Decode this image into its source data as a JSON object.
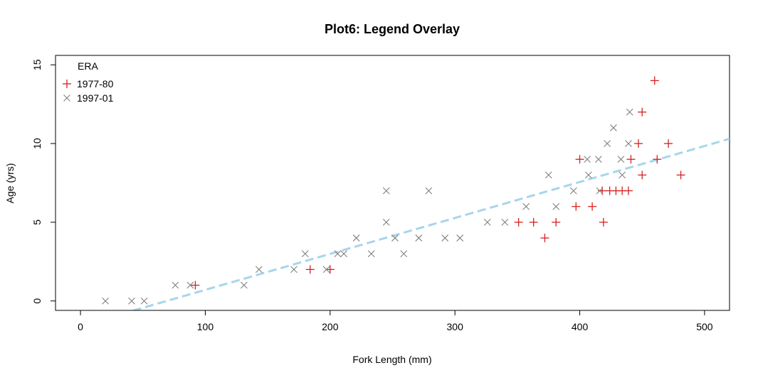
{
  "chart_data": {
    "type": "scatter",
    "title": "Plot6: Legend Overlay",
    "xlabel": "Fork Length (mm)",
    "ylabel": "Age (yrs)",
    "xlim": [
      -20,
      520
    ],
    "ylim": [
      -0.6,
      15.6
    ],
    "x_ticks": [
      0,
      100,
      200,
      300,
      400,
      500
    ],
    "y_ticks": [
      0,
      5,
      10,
      15
    ],
    "legend": {
      "title": "ERA",
      "position": "top-left",
      "entries": [
        {
          "label": "1977-80",
          "marker": "plus",
          "color": "#d62020"
        },
        {
          "label": "1997-01",
          "marker": "cross",
          "color": "#808080"
        }
      ]
    },
    "series": [
      {
        "name": "1977-80",
        "marker": "plus",
        "color": "#d62020",
        "points": [
          [
            92,
            1
          ],
          [
            184,
            2
          ],
          [
            200,
            2
          ],
          [
            351,
            5
          ],
          [
            363,
            5
          ],
          [
            372,
            4
          ],
          [
            381,
            5
          ],
          [
            397,
            6
          ],
          [
            400,
            9
          ],
          [
            410,
            6
          ],
          [
            418,
            7
          ],
          [
            419,
            5
          ],
          [
            424,
            7
          ],
          [
            429,
            7
          ],
          [
            434,
            7
          ],
          [
            439,
            7
          ],
          [
            441,
            9
          ],
          [
            447,
            10
          ],
          [
            450,
            12
          ],
          [
            450,
            8
          ],
          [
            460,
            14
          ],
          [
            462,
            9
          ],
          [
            471,
            10
          ],
          [
            481,
            8
          ]
        ]
      },
      {
        "name": "1997-01",
        "marker": "cross",
        "color": "#808080",
        "points": [
          [
            20,
            0
          ],
          [
            41,
            0
          ],
          [
            51,
            0
          ],
          [
            76,
            1
          ],
          [
            88,
            1
          ],
          [
            131,
            1
          ],
          [
            143,
            2
          ],
          [
            171,
            2
          ],
          [
            180,
            3
          ],
          [
            197,
            2
          ],
          [
            206,
            3
          ],
          [
            211,
            3
          ],
          [
            221,
            4
          ],
          [
            233,
            3
          ],
          [
            245,
            5
          ],
          [
            245,
            7
          ],
          [
            252,
            4
          ],
          [
            259,
            3
          ],
          [
            271,
            4
          ],
          [
            279,
            7
          ],
          [
            292,
            4
          ],
          [
            304,
            4
          ],
          [
            326,
            5
          ],
          [
            340,
            5
          ],
          [
            357,
            6
          ],
          [
            375,
            8
          ],
          [
            381,
            6
          ],
          [
            395,
            7
          ],
          [
            406,
            9
          ],
          [
            407,
            8
          ],
          [
            415,
            9
          ],
          [
            416,
            7
          ],
          [
            422,
            10
          ],
          [
            427,
            11
          ],
          [
            433,
            9
          ],
          [
            434,
            8
          ],
          [
            439,
            10
          ],
          [
            440,
            12
          ]
        ]
      }
    ],
    "fit_line": {
      "style": "dashed",
      "color": "#a6d6ec",
      "x": [
        42,
        520
      ],
      "y": [
        -0.62,
        10.3
      ]
    }
  }
}
